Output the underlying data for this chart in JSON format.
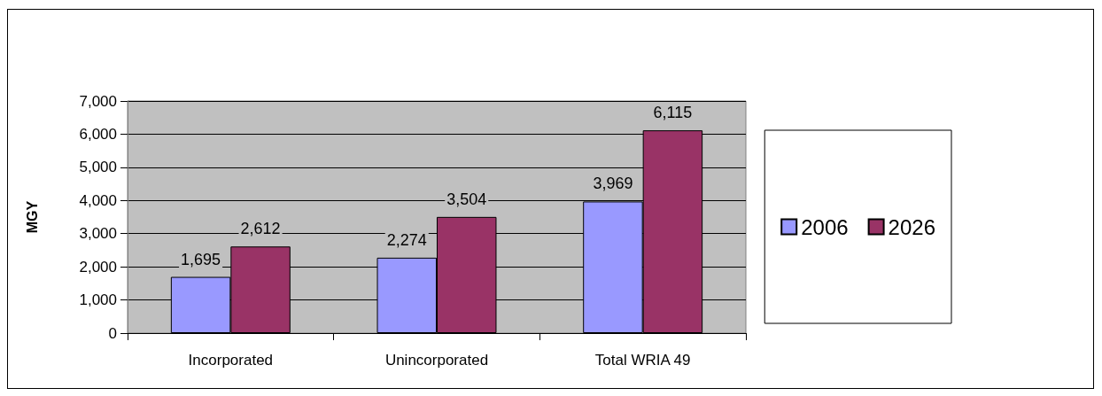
{
  "chart_data": {
    "type": "bar",
    "ylabel": "MGY",
    "categories": [
      "Incorporated",
      "Unincorporated",
      "Total WRIA 49"
    ],
    "series": [
      {
        "name": "2006",
        "color": "#9999ff",
        "values": [
          1695,
          2274,
          3969
        ],
        "value_labels": [
          "1,695",
          "2,274",
          "3,969"
        ]
      },
      {
        "name": "2026",
        "color": "#993366",
        "values": [
          2612,
          3504,
          6115
        ],
        "value_labels": [
          "2,612",
          "3,504",
          "6,115"
        ]
      }
    ],
    "ylim": [
      0,
      7000
    ],
    "yticks": [
      {
        "value": 0,
        "label": "0"
      },
      {
        "value": 1000,
        "label": "1,000"
      },
      {
        "value": 2000,
        "label": "2,000"
      },
      {
        "value": 3000,
        "label": "3,000"
      },
      {
        "value": 4000,
        "label": "4,000"
      },
      {
        "value": 5000,
        "label": "5,000"
      },
      {
        "value": 6000,
        "label": "6,000"
      },
      {
        "value": 7000,
        "label": "7,000"
      }
    ],
    "grid": "y",
    "legend": "right"
  }
}
